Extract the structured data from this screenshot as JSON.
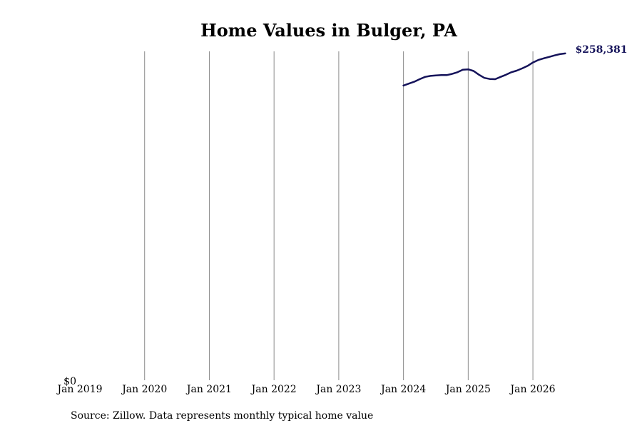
{
  "chart_data": {
    "type": "line",
    "title": "Home Values in Bulger, PA",
    "xlabel": "",
    "ylabel": "",
    "x_range": [
      "2019-01",
      "2026-08"
    ],
    "ylim": [
      0,
      260000
    ],
    "x_ticks": [
      "2019-01",
      "2020-01",
      "2021-01",
      "2022-01",
      "2023-01",
      "2024-01",
      "2025-01",
      "2026-01"
    ],
    "x_tick_labels": [
      "Jan 2019",
      "Jan 2020",
      "Jan 2021",
      "Jan 2022",
      "Jan 2023",
      "Jan 2024",
      "Jan 2025",
      "Jan 2026"
    ],
    "y_tick_labels": [
      "$0"
    ],
    "vertical_grid": true,
    "horizontal_grid": false,
    "line_color": "#15135a",
    "series": [
      {
        "x": [
          "2024-01",
          "2024-02",
          "2024-03",
          "2024-04",
          "2024-05",
          "2024-06",
          "2024-07",
          "2024-08",
          "2024-09",
          "2024-10",
          "2024-11",
          "2024-12",
          "2025-01",
          "2025-02",
          "2025-03",
          "2025-04",
          "2025-05",
          "2025-06",
          "2025-07",
          "2025-08",
          "2025-09",
          "2025-10",
          "2025-11",
          "2025-12",
          "2026-01",
          "2026-02",
          "2026-03",
          "2026-04",
          "2026-05",
          "2026-06",
          "2026-07"
        ],
        "y": [
          233000,
          234500,
          236000,
          238000,
          239800,
          240600,
          241000,
          241200,
          241200,
          242200,
          243500,
          245500,
          245800,
          244500,
          241500,
          239000,
          238200,
          238000,
          239800,
          241500,
          243500,
          244800,
          246500,
          248500,
          251200,
          253200,
          254500,
          255600,
          256800,
          257800,
          258381
        ]
      }
    ],
    "end_label": "$258,381"
  },
  "footer": {
    "source": "Source: Zillow. Data represents monthly typical home value"
  }
}
